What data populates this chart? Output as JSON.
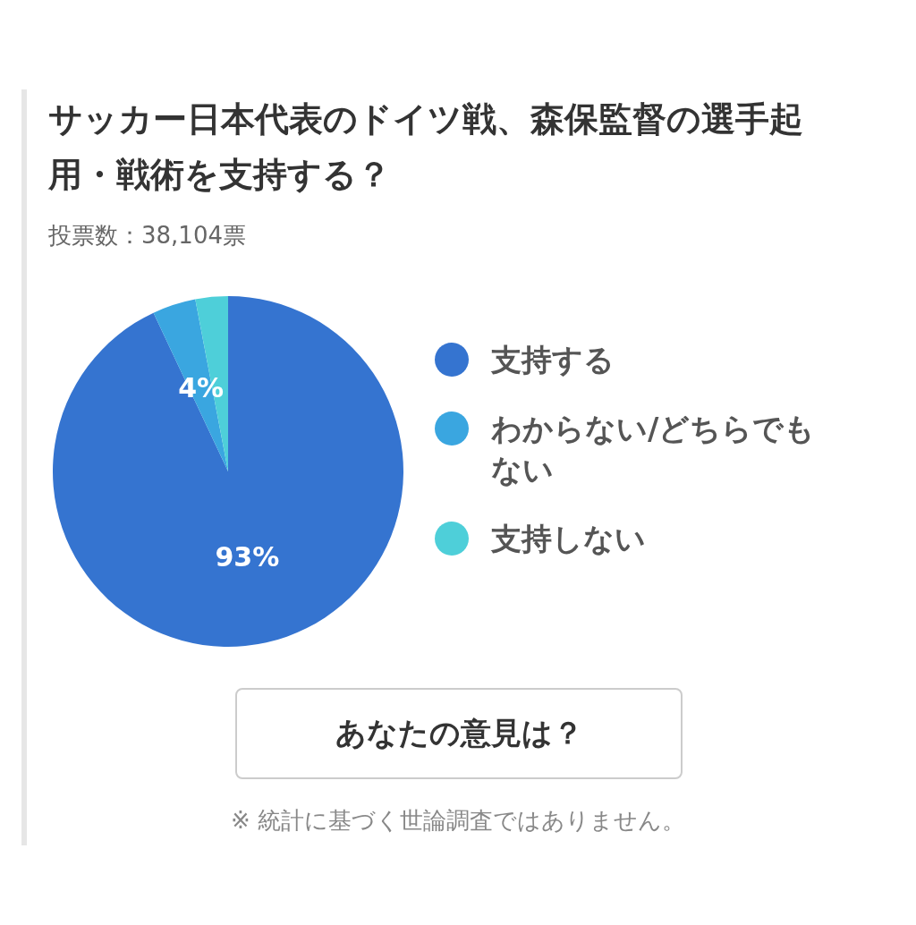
{
  "chart_data": {
    "type": "pie",
    "title": "サッカー日本代表のドイツ戦、森保監督の選手起用・戦術を支持する？",
    "subtitle": "投票数：38,104票",
    "categories": [
      "支持する",
      "わからない/どちらでもない",
      "支持しない"
    ],
    "values": [
      93,
      4,
      3
    ],
    "colors": [
      "#3574d0",
      "#3aa6e0",
      "#4ecfd9"
    ],
    "value_labels": [
      "93%",
      "4%",
      null
    ],
    "legend": "right",
    "annotations": [
      "あなたの意見は？",
      "※ 統計に基づく世論調査ではありません。"
    ]
  }
}
